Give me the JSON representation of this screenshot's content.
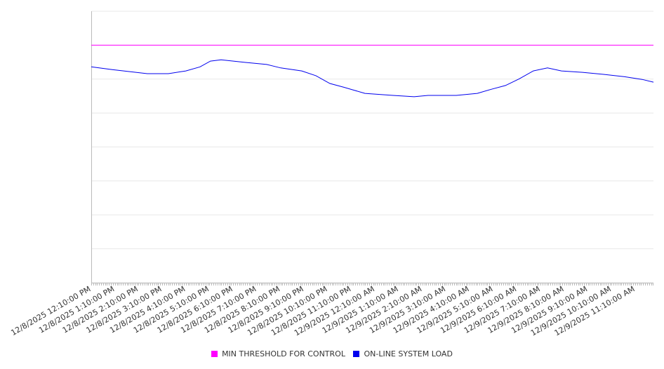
{
  "chart_data": {
    "type": "line",
    "title": "",
    "xlabel": "",
    "ylabel": "",
    "x_unit": "hours since 12/8/2025 12:10:00 PM",
    "xlim": [
      0,
      23.77
    ],
    "ylim": [
      0,
      80
    ],
    "y_gridlines": [
      0,
      10,
      20,
      30,
      40,
      50,
      60,
      70,
      80
    ],
    "x_tick_labels": [
      "12/8/2025 12:10:00 PM",
      "12/8/2025 1:10:00 PM",
      "12/8/2025 2:10:00 PM",
      "12/8/2025 3:10:00 PM",
      "12/8/2025 4:10:00 PM",
      "12/8/2025 5:10:00 PM",
      "12/8/2025 6:10:00 PM",
      "12/8/2025 7:10:00 PM",
      "12/8/2025 8:10:00 PM",
      "12/8/2025 9:10:00 PM",
      "12/8/2025 10:10:00 PM",
      "12/8/2025 11:10:00 PM",
      "12/9/2025 12:10:00 AM",
      "12/9/2025 1:10:00 AM",
      "12/9/2025 2:10:00 AM",
      "12/9/2025 3:10:00 AM",
      "12/9/2025 4:10:00 AM",
      "12/9/2025 5:10:00 AM",
      "12/9/2025 6:10:00 AM",
      "12/9/2025 7:10:00 AM",
      "12/9/2025 8:10:00 AM",
      "12/9/2025 9:10:00 AM",
      "12/9/2025 10:10:00 AM",
      "12/9/2025 11:10:00 AM"
    ],
    "series": [
      {
        "name": "MIN THRESHOLD FOR CONTROL",
        "color": "#ff00ff",
        "x": [
          0,
          23.77
        ],
        "y": [
          70,
          70
        ]
      },
      {
        "name": "ON-LINE SYSTEM LOAD",
        "color": "#0000ee",
        "x": [
          0,
          0.89,
          2.37,
          3.26,
          4.0,
          4.6,
          5.04,
          5.49,
          6.53,
          7.42,
          8.01,
          8.9,
          9.5,
          10.09,
          10.68,
          11.57,
          12.76,
          13.65,
          14.24,
          15.43,
          16.32,
          16.91,
          17.51,
          18.1,
          18.69,
          19.29,
          19.88,
          20.77,
          21.66,
          22.55,
          23.29,
          23.77
        ],
        "y": [
          63.6,
          62.8,
          61.6,
          61.6,
          62.4,
          63.6,
          65.3,
          65.7,
          64.9,
          64.3,
          63.3,
          62.4,
          61.0,
          58.7,
          57.6,
          55.8,
          55.2,
          54.8,
          55.2,
          55.2,
          55.8,
          57.0,
          58.1,
          60.1,
          62.4,
          63.3,
          62.4,
          62.0,
          61.4,
          60.7,
          59.9,
          59.1
        ]
      }
    ],
    "legend": "bottom-center",
    "grid": true
  }
}
